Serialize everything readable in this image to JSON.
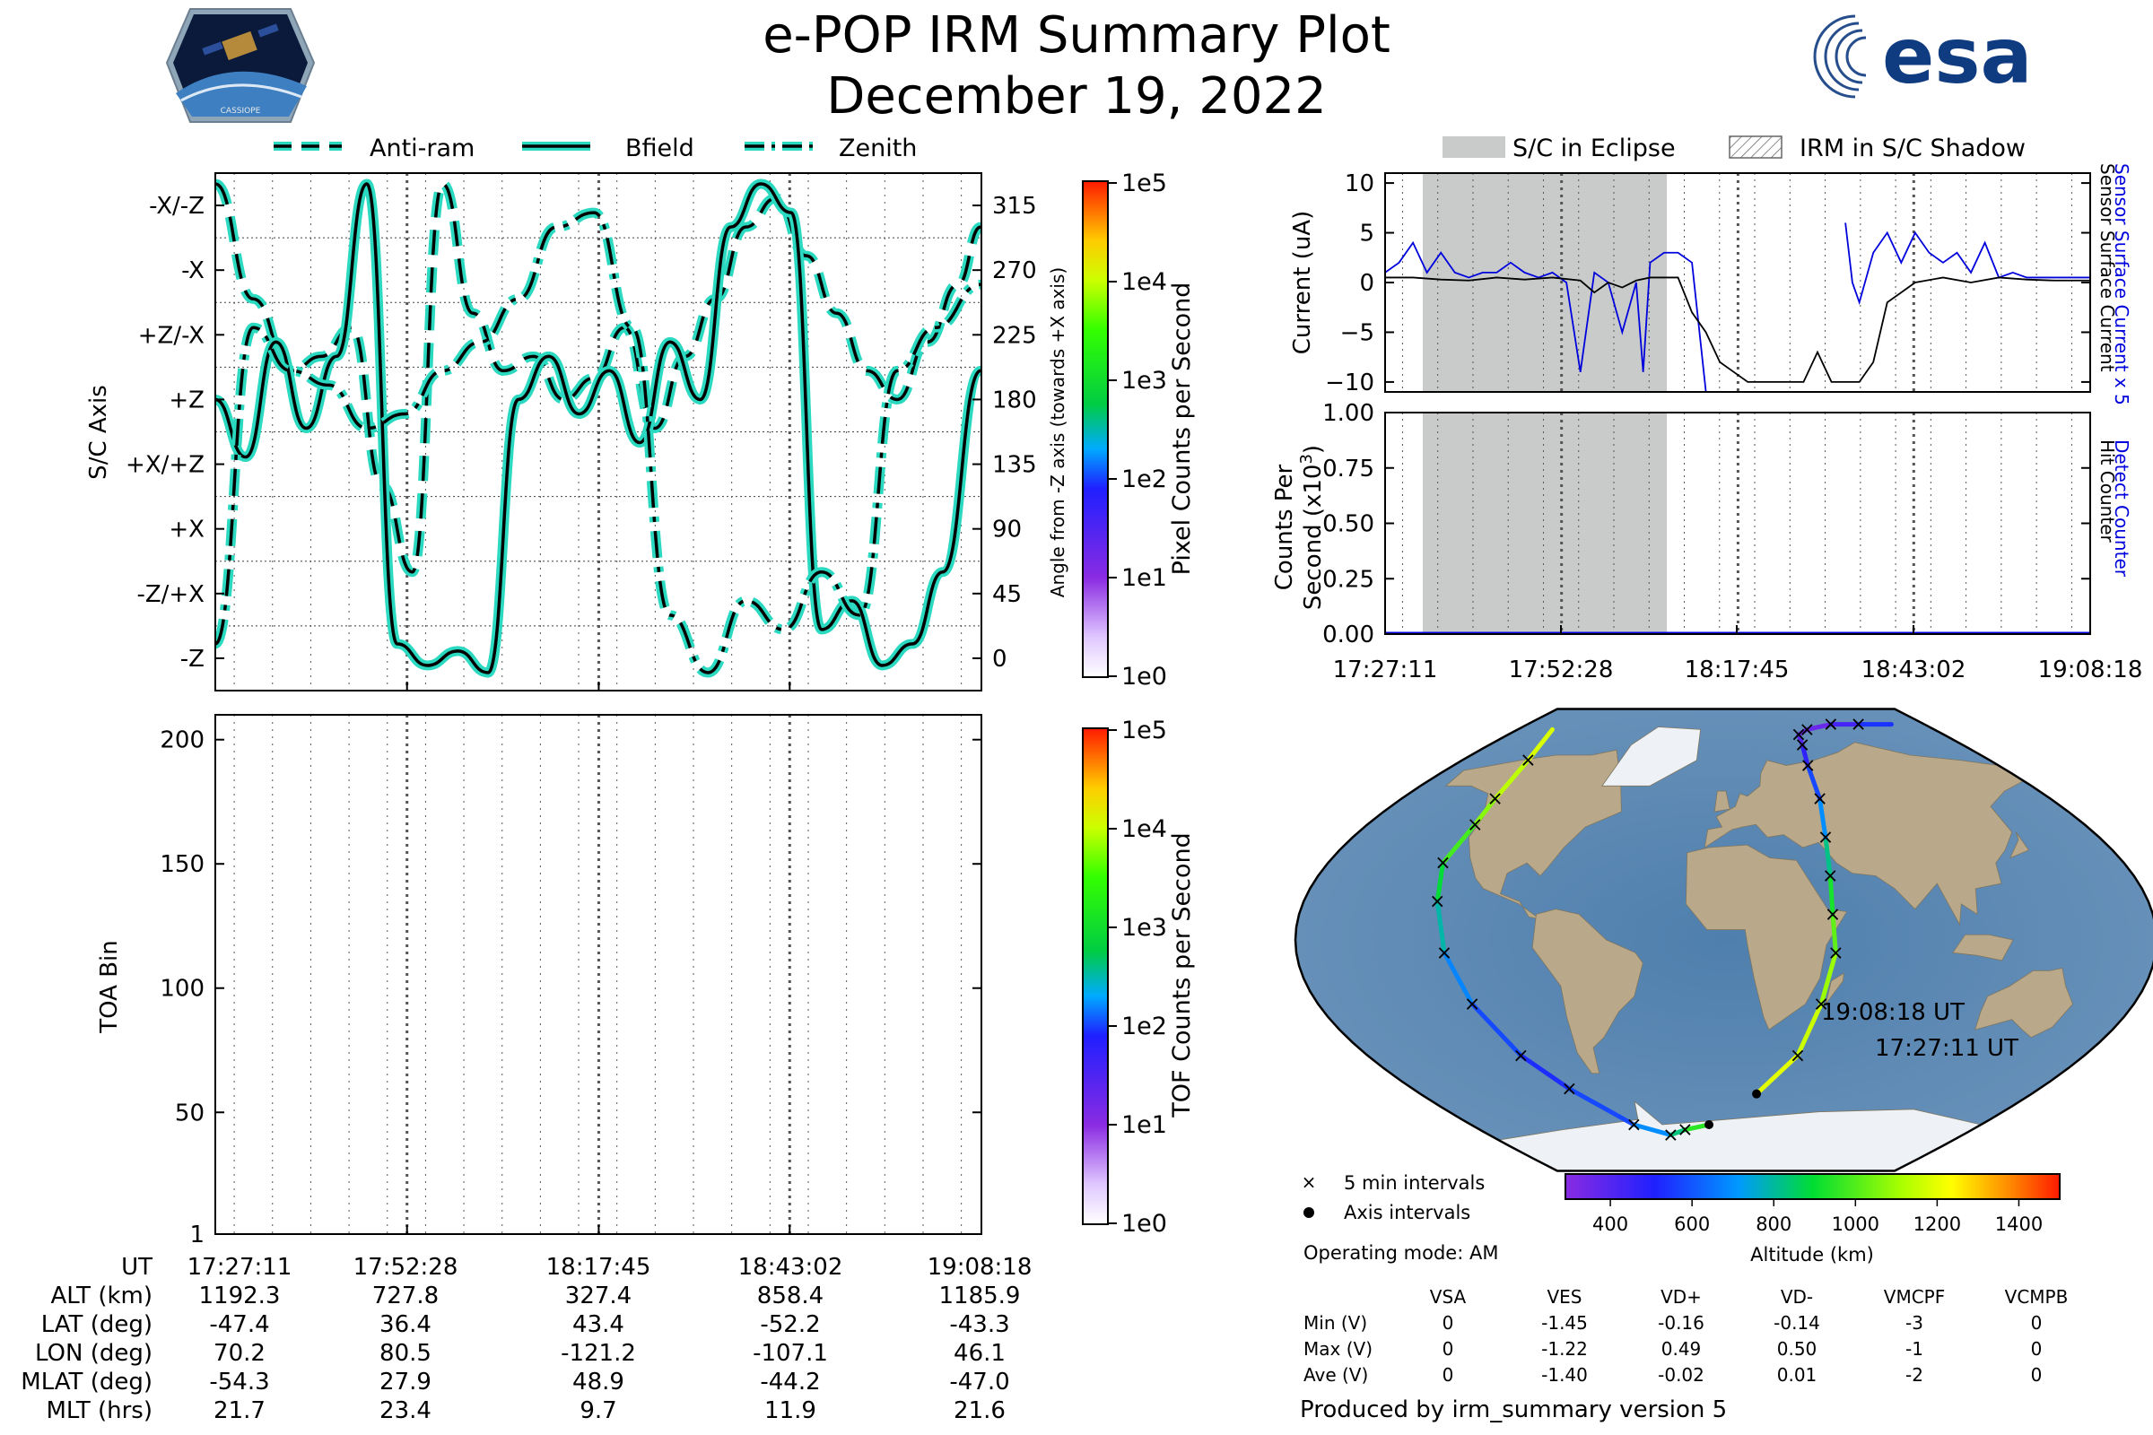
{
  "header": {
    "title": "e-POP IRM Summary Plot",
    "date": "December 19, 2022",
    "mission_logo_text": "CASSIOPE",
    "agency_logo_text": "esa"
  },
  "colors": {
    "trace_fill": "#2ad9c0",
    "trace_edge": "#000000",
    "eclipse_band": "#c8cbca",
    "current_sensor": "#0000dd",
    "current_surface": "#000000",
    "ocean": "#5e87b0",
    "land": "#b9a98a"
  },
  "time_axis_labels": [
    "17:27:11",
    "17:52:28",
    "18:17:45",
    "18:43:02",
    "19:08:18"
  ],
  "chart_data": [
    {
      "id": "sc_axis",
      "type": "line",
      "legend": [
        "Anti-ram",
        "Bfield",
        "Zenith"
      ],
      "ylabel": "S/C Axis",
      "ylabel_right": "Angle from -Z axis (towards +X axis)",
      "ytick_left": [
        "-X/-Z",
        "-X",
        "+Z/-X",
        "+Z",
        "+X/+Z",
        "+X",
        "-Z/+X",
        "-Z"
      ],
      "ytick_right": [
        "315",
        "270",
        "225",
        "180",
        "135",
        "90",
        "45",
        "0"
      ],
      "ylim": [
        -22.5,
        337.5
      ],
      "x_range_min": [
        0,
        101.1
      ],
      "series": [
        {
          "name": "Anti-ram",
          "style": "dashed",
          "x": [
            0,
            5,
            10,
            14,
            18,
            22,
            26,
            30,
            34,
            38,
            42,
            46,
            50,
            54,
            58,
            62,
            66,
            70,
            74,
            78,
            82,
            86,
            90,
            94,
            98,
            101
          ],
          "y": [
            330,
            250,
            200,
            210,
            230,
            120,
            60,
            330,
            240,
            200,
            210,
            180,
            195,
            230,
            160,
            210,
            250,
            300,
            320,
            280,
            240,
            200,
            180,
            220,
            260,
            300
          ]
        },
        {
          "name": "Bfield",
          "style": "solid",
          "x": [
            0,
            4,
            8,
            12,
            16,
            20,
            24,
            28,
            32,
            36,
            40,
            44,
            48,
            52,
            56,
            60,
            64,
            68,
            72,
            76,
            80,
            84,
            88,
            92,
            96,
            101
          ],
          "y": [
            180,
            140,
            220,
            160,
            210,
            330,
            10,
            -5,
            5,
            -10,
            180,
            210,
            170,
            200,
            150,
            220,
            180,
            300,
            330,
            310,
            20,
            40,
            -5,
            10,
            60,
            200
          ]
        },
        {
          "name": "Zenith",
          "style": "dashdot",
          "x": [
            0,
            5,
            10,
            15,
            20,
            25,
            30,
            35,
            40,
            45,
            50,
            55,
            60,
            65,
            70,
            75,
            80,
            85,
            90,
            95,
            101
          ],
          "y": [
            10,
            230,
            200,
            190,
            160,
            170,
            200,
            220,
            250,
            300,
            310,
            230,
            30,
            -10,
            40,
            20,
            60,
            30,
            200,
            230,
            260
          ]
        }
      ]
    },
    {
      "id": "toa",
      "type": "heatmap",
      "ylabel": "TOA Bin",
      "yticks": [
        1,
        50,
        100,
        150,
        200
      ],
      "ylim": [
        1,
        210
      ],
      "values": []
    },
    {
      "id": "pixel_colorbar",
      "type": "colorbar",
      "label": "Pixel Counts per Second",
      "ticks": [
        "1e5",
        "1e4",
        "1e3",
        "1e2",
        "1e1",
        "1e0"
      ],
      "scale": "log",
      "range": [
        1,
        100000
      ]
    },
    {
      "id": "tof_colorbar",
      "type": "colorbar",
      "label": "TOF Counts per Second",
      "ticks": [
        "1e5",
        "1e4",
        "1e3",
        "1e2",
        "1e1",
        "1e0"
      ],
      "scale": "log",
      "range": [
        1,
        100000
      ]
    },
    {
      "id": "current",
      "type": "line",
      "legend": [
        "S/C in Eclipse",
        "IRM in S/C Shadow"
      ],
      "ylabel": "Current (uA)",
      "right_label_1": "Sensor Surface Current x 5",
      "right_label_2": "Sensor Surface Current",
      "yticks": [
        "10",
        "5",
        "0",
        "−5",
        "−10"
      ],
      "ylim": [
        -11,
        11
      ],
      "eclipse_min": [
        5.4,
        40.4
      ],
      "series": [
        {
          "name": "Sensor Surface Current x 5",
          "x": [
            0,
            2,
            4,
            6,
            8,
            10,
            12,
            14,
            16,
            18,
            20,
            22,
            24,
            26,
            28,
            30,
            32,
            34,
            36,
            37,
            38,
            40,
            42,
            44,
            46,
            48,
            50,
            52,
            54,
            56,
            58,
            60,
            62,
            64,
            65,
            66,
            67,
            68,
            70,
            72,
            74,
            76,
            78,
            80,
            82,
            84,
            86,
            88,
            90,
            92,
            94,
            96,
            98,
            101
          ],
          "y": [
            1,
            2,
            4,
            1,
            3,
            1,
            0.5,
            1,
            1,
            2,
            1,
            0.5,
            1,
            0,
            -9,
            1,
            0,
            -5,
            0,
            -9,
            2,
            3,
            3,
            2,
            -11,
            null,
            null,
            null,
            null,
            null,
            null,
            null,
            null,
            null,
            null,
            6,
            0,
            -2,
            3,
            5,
            2,
            5,
            3,
            2,
            3,
            1,
            4,
            0.5,
            1,
            0.5,
            0.5,
            0.5,
            0.5,
            0.5
          ]
        },
        {
          "name": "Sensor Surface Current",
          "x": [
            0,
            4,
            8,
            12,
            16,
            20,
            24,
            28,
            30,
            32,
            34,
            36,
            38,
            40,
            42,
            44,
            46,
            48,
            50,
            52,
            54,
            56,
            58,
            60,
            62,
            64,
            66,
            68,
            70,
            72,
            74,
            76,
            80,
            84,
            88,
            92,
            96,
            101
          ],
          "y": [
            0.5,
            0.5,
            0.3,
            0.2,
            0.5,
            0.3,
            0.5,
            0.2,
            -1,
            0,
            -0.5,
            0.2,
            0.5,
            0.5,
            0.5,
            -3,
            -5,
            -8,
            -9,
            -10,
            -10,
            -10,
            -10,
            -10,
            -7,
            -10,
            -10,
            -10,
            -8,
            -2,
            -1,
            0,
            0.5,
            0,
            0.5,
            0.3,
            0.2,
            0.2
          ]
        }
      ]
    },
    {
      "id": "counts",
      "type": "line",
      "ylabel_line1": "Counts Per",
      "ylabel_line2": "Second (x10",
      "ylabel_sup": "3",
      "ylabel_close": ")",
      "right_label_1": "Detect Counter",
      "right_label_2": "Hit Counter",
      "yticks": [
        "1.00",
        "0.75",
        "0.50",
        "0.25",
        "0.00"
      ],
      "ylim": [
        0,
        1
      ],
      "series": [
        {
          "name": "Detect Counter",
          "x": [
            0,
            101
          ],
          "y": [
            0,
            0
          ]
        }
      ]
    },
    {
      "id": "orbit_map",
      "type": "map",
      "labels": [
        "19:08:18 UT",
        "17:27:11 UT"
      ],
      "legend": [
        "5 min intervals",
        "Axis intervals"
      ],
      "operating_mode": "Operating mode: AM",
      "altitude_label": "Altitude (km)",
      "altitude_ticks": [
        "400",
        "600",
        "800",
        "1000",
        "1200",
        "1400"
      ],
      "altitude_range": [
        290,
        1500
      ],
      "track_a": {
        "lon": [
          -150,
          -135,
          -128,
          -126,
          -128,
          -123,
          -118,
          -112,
          -103,
          -90,
          -65,
          -42,
          -30,
          -12
        ],
        "lat": [
          82,
          70,
          55,
          45,
          30,
          15,
          -5,
          -25,
          -45,
          -58,
          -72,
          -76,
          -74,
          -72
        ],
        "alt": [
          1190,
          1170,
          1110,
          1030,
          940,
          840,
          740,
          620,
          540,
          520,
          630,
          760,
          900,
          1000
        ]
      },
      "track_b": {
        "lon": [
          18,
          36,
          42,
          46,
          45,
          46,
          48,
          52,
          54,
          58,
          60,
          70,
          95,
          120,
          150
        ],
        "lat": [
          -60,
          -45,
          -25,
          -5,
          10,
          25,
          40,
          55,
          68,
          76,
          80,
          82,
          84,
          84,
          84
        ],
        "alt": [
          1200,
          1190,
          1130,
          1060,
          970,
          880,
          760,
          630,
          520,
          430,
          360,
          330,
          380,
          480,
          600
        ]
      }
    }
  ],
  "stats": {
    "footer_rows": [
      {
        "label": "UT",
        "values": [
          "17:27:11",
          "17:52:28",
          "18:17:45",
          "18:43:02",
          "19:08:18"
        ]
      },
      {
        "label": "ALT (km)",
        "values": [
          "1192.3",
          "727.8",
          "327.4",
          "858.4",
          "1185.9"
        ]
      },
      {
        "label": "LAT (deg)",
        "values": [
          "-47.4",
          "36.4",
          "43.4",
          "-52.2",
          "-43.3"
        ]
      },
      {
        "label": "LON (deg)",
        "values": [
          "70.2",
          "80.5",
          "-121.2",
          "-107.1",
          "46.1"
        ]
      },
      {
        "label": "MLAT (deg)",
        "values": [
          "-54.3",
          "27.9",
          "48.9",
          "-44.2",
          "-47.0"
        ]
      },
      {
        "label": "MLT (hrs)",
        "values": [
          "21.7",
          "23.4",
          "9.7",
          "11.9",
          "21.6"
        ]
      }
    ],
    "voltage_headers": [
      "VSA",
      "VES",
      "VD+",
      "VD-",
      "VMCPF",
      "VCMPB"
    ],
    "voltage_rows": [
      {
        "label": "Min (V)",
        "values": [
          "0",
          "-1.45",
          "-0.16",
          "-0.14",
          "-3",
          "0"
        ]
      },
      {
        "label": "Max (V)",
        "values": [
          "0",
          "-1.22",
          "0.49",
          "0.50",
          "-1",
          "0"
        ]
      },
      {
        "label": "Ave (V)",
        "values": [
          "0",
          "-1.40",
          "-0.02",
          "0.01",
          "-2",
          "0"
        ]
      }
    ],
    "produced_by": "Produced by irm_summary version 5"
  }
}
